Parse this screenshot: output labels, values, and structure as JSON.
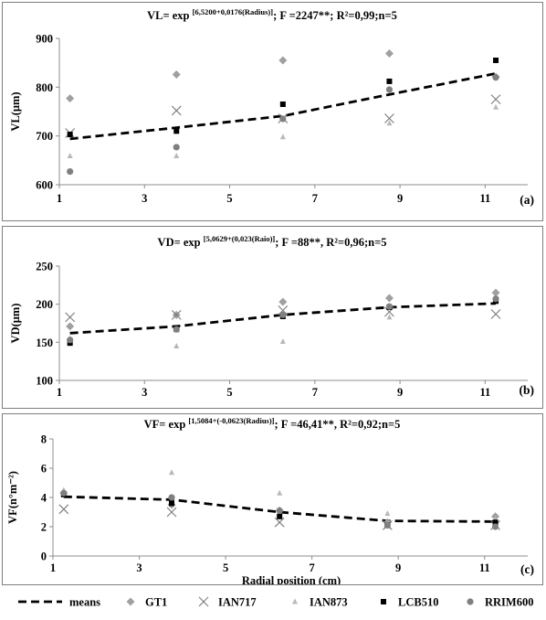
{
  "chart_data": [
    {
      "type": "scatter",
      "title_prefix": "VL= exp",
      "title_exp": "[6,5200+0,0176(Radius)]",
      "title_suffix": "; F =2247**; R²=0,99;n=5",
      "ylabel": "VL(μm)",
      "xlabel": "",
      "panel_label": "(a)",
      "xlim": [
        1,
        12
      ],
      "ylim": [
        600,
        900
      ],
      "xticks": [
        1,
        3,
        5,
        7,
        9,
        11
      ],
      "yticks": [
        600,
        700,
        800,
        900
      ],
      "x": [
        1.25,
        3.75,
        6.25,
        8.75,
        11.25
      ],
      "series": [
        {
          "name": "means",
          "values": [
            694,
            717,
            741,
            785,
            828
          ]
        },
        {
          "name": "GT1",
          "values": [
            777,
            826,
            855,
            869,
            821
          ]
        },
        {
          "name": "IAN717",
          "values": [
            706,
            752,
            736,
            736,
            775
          ]
        },
        {
          "name": "IAN873",
          "values": [
            659,
            659,
            698,
            726,
            759
          ]
        },
        {
          "name": "LCB510",
          "values": [
            703,
            710,
            765,
            812,
            855
          ]
        },
        {
          "name": "RRIM600",
          "values": [
            627,
            677,
            735,
            795,
            820
          ]
        }
      ]
    },
    {
      "type": "scatter",
      "title_prefix": "VD= exp",
      "title_exp": "[5,0629+(0,023(Raio)]",
      "title_suffix": "; F =88**, R²=0,96;n=5",
      "ylabel": "VD(μm)",
      "xlabel": "",
      "panel_label": "(b)",
      "xlim": [
        1,
        12
      ],
      "ylim": [
        100,
        250
      ],
      "xticks": [
        1,
        3,
        5,
        7,
        9,
        11
      ],
      "yticks": [
        100,
        150,
        200,
        250
      ],
      "x": [
        1.25,
        3.75,
        6.25,
        8.75,
        11.25
      ],
      "series": [
        {
          "name": "means",
          "values": [
            162,
            171,
            186,
            196,
            201
          ]
        },
        {
          "name": "GT1",
          "values": [
            171,
            186,
            203,
            208,
            215
          ]
        },
        {
          "name": "IAN717",
          "values": [
            183,
            186,
            192,
            190,
            187
          ]
        },
        {
          "name": "IAN873",
          "values": [
            155,
            145,
            151,
            183,
            206
          ]
        },
        {
          "name": "LCB510",
          "values": [
            149,
            167,
            184,
            196,
            204
          ]
        },
        {
          "name": "RRIM600",
          "values": [
            153,
            167,
            186,
            197,
            207
          ]
        }
      ]
    },
    {
      "type": "scatter",
      "title_prefix": "VF= exp",
      "title_exp": "[1,5084+(-0,0623(Radius)]",
      "title_suffix": "; F =46,41**, R²=0,92;n=5",
      "ylabel": "VF(n°m⁻²)",
      "xlabel": "Radial position (cm)",
      "panel_label": "(c)",
      "xlim": [
        1,
        12
      ],
      "ylim": [
        0,
        8
      ],
      "xticks": [
        1,
        3,
        5,
        7,
        9,
        11
      ],
      "yticks": [
        0,
        2,
        4,
        6,
        8
      ],
      "x": [
        1.25,
        3.75,
        6.25,
        8.75,
        11.25
      ],
      "series": [
        {
          "name": "means",
          "values": [
            4.05,
            3.85,
            3.0,
            2.4,
            2.35
          ]
        },
        {
          "name": "GT1",
          "values": [
            4.3,
            3.5,
            3.1,
            2.3,
            2.7
          ]
        },
        {
          "name": "IAN717",
          "values": [
            3.2,
            3.0,
            2.3,
            2.1,
            2.1
          ]
        },
        {
          "name": "IAN873",
          "values": [
            4.5,
            5.7,
            4.3,
            2.9,
            2.5
          ]
        },
        {
          "name": "LCB510",
          "values": [
            4.2,
            3.6,
            2.7,
            2.1,
            2.3
          ]
        },
        {
          "name": "RRIM600",
          "values": [
            4.3,
            4.0,
            3.1,
            2.1,
            2.0
          ]
        }
      ]
    }
  ],
  "legend": [
    {
      "name": "means",
      "marker": "dash",
      "color": "#000000"
    },
    {
      "name": "GT1",
      "marker": "diamond",
      "color": "#a0a0a0"
    },
    {
      "name": "IAN717",
      "marker": "cross",
      "color": "#7a7a7a"
    },
    {
      "name": "IAN873",
      "marker": "triangle",
      "color": "#b8b8b8"
    },
    {
      "name": "LCB510",
      "marker": "square",
      "color": "#000000"
    },
    {
      "name": "RRIM600",
      "marker": "circle",
      "color": "#808080"
    }
  ]
}
